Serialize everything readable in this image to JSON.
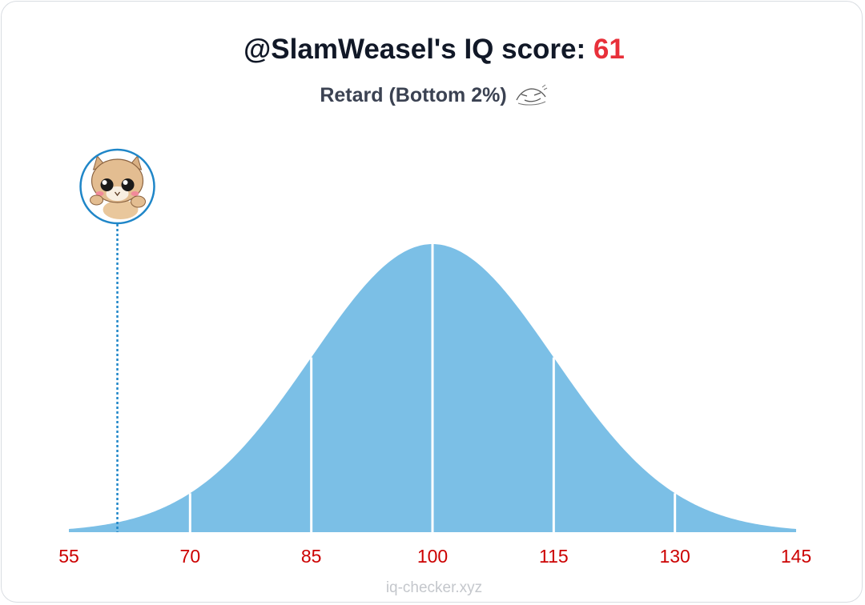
{
  "header": {
    "title_prefix": "@SlamWeasel's IQ score: ",
    "score": "61",
    "subtitle": "Retard (Bottom 2%)"
  },
  "chart_data": {
    "type": "area",
    "distribution": "normal",
    "mean": 100,
    "sd": 15,
    "xlim": [
      55,
      145
    ],
    "x_ticks": [
      55,
      70,
      85,
      100,
      115,
      130,
      145
    ],
    "marker": {
      "value": 61
    },
    "fill_color": "#7bbfe6",
    "divider_color": "#ffffff",
    "marker_color": "#1f86c8",
    "tick_label_color": "#cc0000"
  },
  "footer": {
    "watermark": "iq-checker.xyz"
  },
  "icons": {
    "subtitle_icon": "smug-face-icon",
    "avatar": "avatar"
  }
}
